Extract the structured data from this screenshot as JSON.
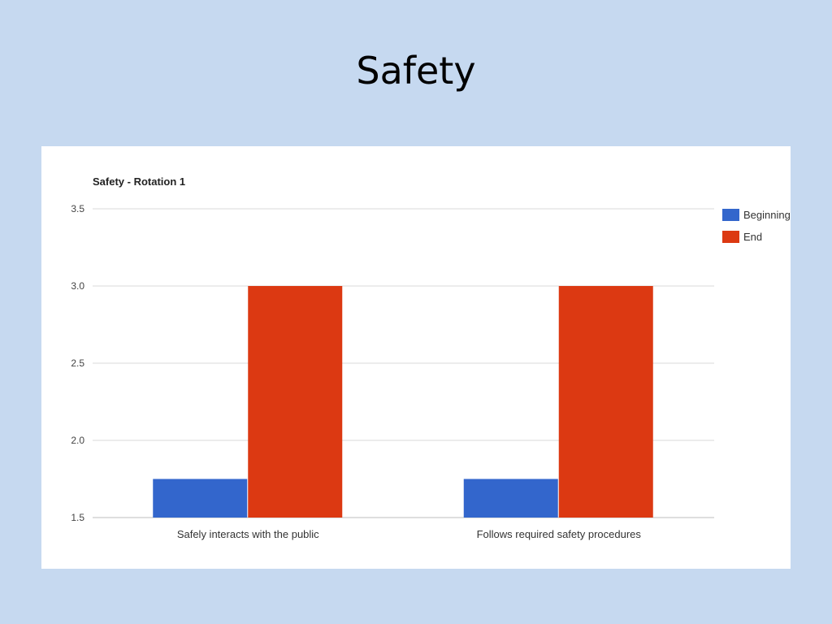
{
  "slide": {
    "title": "Safety"
  },
  "colors": {
    "background": "#c6d9f0",
    "panel": "#ffffff",
    "gridline": "#d9d9d9",
    "axis_text": "#444444"
  },
  "chart_data": {
    "type": "bar",
    "title": "Safety - Rotation 1",
    "categories": [
      "Safely interacts with the public",
      "Follows required safety procedures"
    ],
    "series": [
      {
        "name": "Beginning",
        "color": "#3366cc",
        "values": [
          1.75,
          1.75
        ]
      },
      {
        "name": "End",
        "color": "#dc3912",
        "values": [
          3.0,
          3.0
        ]
      }
    ],
    "ylim": [
      1.5,
      3.5
    ],
    "yticks": [
      "1.5",
      "2.0",
      "2.5",
      "3.0",
      "3.5"
    ],
    "grid": true,
    "legend": "right"
  }
}
